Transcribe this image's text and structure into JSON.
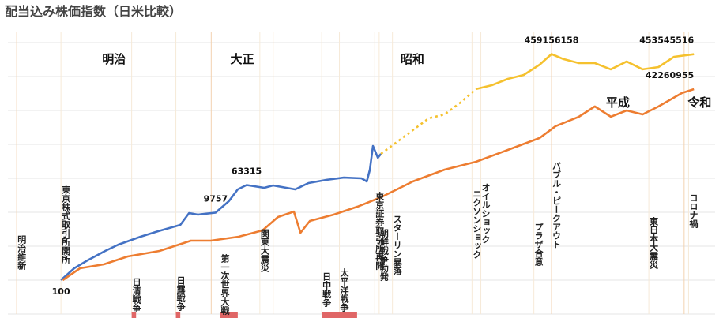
{
  "chart_data": {
    "type": "line",
    "title": "配当込み株価指数（日米比較）",
    "log_scale": true,
    "grid": true,
    "xlim": [
      1866,
      2026
    ],
    "ylim": [
      10,
      2000000000
    ],
    "yticks": [
      10,
      100,
      1000,
      10000,
      100000,
      1000000,
      10000000,
      100000000,
      1000000000
    ],
    "series": [
      {
        "color": "#4472c4",
        "dashed": false,
        "x": [
          1878,
          1881,
          1884,
          1888,
          1891,
          1896,
          1900,
          1905,
          1907,
          1909,
          1913,
          1916,
          1918,
          1920,
          1924,
          1926,
          1929,
          1931,
          1934,
          1938,
          1942,
          1946,
          1947.2,
          1947.9,
          1948.6,
          1949.7,
          1950.4
        ],
        "values": [
          100,
          223,
          381,
          724,
          1110,
          1900,
          2770,
          4250,
          9480,
          8520,
          9757,
          21200,
          47200,
          63315,
          52600,
          61700,
          52600,
          47200,
          72400,
          89800,
          105000,
          100000,
          80700,
          180000,
          898000,
          403000,
          526000
        ],
        "value_labels": [
          "100",
          null,
          null,
          null,
          null,
          null,
          null,
          null,
          null,
          null,
          "9757",
          null,
          null,
          "63315",
          null,
          null,
          null,
          null,
          null,
          null,
          null,
          null,
          null,
          null,
          null,
          null,
          null
        ]
      },
      {
        "color": "#f5c12e",
        "dashed": true,
        "x": [
          1950.4,
          1954,
          1957.6,
          1961.2,
          1964.8,
          1968.4,
          1971.9
        ],
        "values": [
          526000,
          1170000,
          2620000,
          5850000,
          7650000,
          17100000,
          42500000
        ]
      },
      {
        "color": "#f5c12e",
        "dashed": false,
        "x": [
          1971.9,
          1975.5,
          1979.1,
          1982.7,
          1986.3,
          1989,
          1991.7,
          1995.2,
          1998.8,
          2002.4,
          2006,
          2009.6,
          2013.2,
          2016.7,
          2021.2
        ],
        "values": [
          42500000,
          55500000,
          85100000,
          111000000,
          223000000,
          459156158,
          325000000,
          248000000,
          248000000,
          162000000,
          277000000,
          162000000,
          190000000,
          381000000,
          453545516
        ],
        "value_labels": [
          null,
          null,
          null,
          null,
          null,
          "459156158",
          null,
          null,
          null,
          null,
          null,
          null,
          null,
          null,
          "453545516"
        ]
      },
      {
        "color": "#ed7d31",
        "dashed": false,
        "x": [
          1878.4,
          1882.3,
          1887.7,
          1893.1,
          1900.3,
          1907.4,
          1911.9,
          1918.2,
          1923.6,
          1927.1,
          1930.7,
          1932.2,
          1934.3,
          1939.7,
          1945.1,
          1950.4,
          1957.6,
          1964.8,
          1971.9,
          1979.1,
          1986.3,
          1989.9,
          1995.2,
          1998.8,
          2002.4,
          2006,
          2009.6,
          2013.2,
          2018.5,
          2021.2
        ],
        "values": [
          100,
          223,
          292,
          499,
          724,
          1450,
          1450,
          1900,
          2920,
          7240,
          10500,
          2480,
          5540,
          8520,
          14600,
          27700,
          80700,
          180000,
          308000,
          687000,
          1540000,
          3430000,
          6520000,
          13100000,
          6520000,
          10000000,
          7650000,
          13100000,
          32500000,
          42260955
        ],
        "value_labels": [
          null,
          null,
          null,
          null,
          null,
          null,
          null,
          null,
          null,
          null,
          null,
          null,
          null,
          null,
          null,
          null,
          null,
          null,
          null,
          null,
          null,
          null,
          null,
          null,
          null,
          null,
          null,
          null,
          null,
          "42260955"
        ]
      }
    ],
    "eras": [
      {
        "name": "明治",
        "start": 1868
      },
      {
        "name": "大正",
        "start": 1912
      },
      {
        "name": "昭和",
        "start": 1926
      },
      {
        "name": "平成",
        "start": 1989
      },
      {
        "name": "令和",
        "start": 2019
      }
    ],
    "events": [
      {
        "year": 1868,
        "text": "明治維新"
      },
      {
        "year": 1878,
        "text": "東京株式取引所開所"
      },
      {
        "year": 1894,
        "text": "日清戦争"
      },
      {
        "year": 1904,
        "text": "日露戦争"
      },
      {
        "year": 1914,
        "text": "第一次世界大戦"
      },
      {
        "year": 1923,
        "text": "関東大震災"
      },
      {
        "year": 1937,
        "text": "日中戦争"
      },
      {
        "year": 1941,
        "text": "太平洋戦争"
      },
      {
        "year": 1949,
        "text": "東京証券取引所再開"
      },
      {
        "year": 1950,
        "text": "朝鮮戦争勃発"
      },
      {
        "year": 1953,
        "text": "スターリン暴落"
      },
      {
        "year": 1971,
        "text": "ニクソンショック"
      },
      {
        "year": 1973,
        "text": "オイルショック"
      },
      {
        "year": 1985,
        "text": "プラザ合意"
      },
      {
        "year": 1989,
        "text": "バブル・ピークアウト"
      },
      {
        "year": 2011,
        "text": "東日本大震災"
      },
      {
        "year": 2020,
        "text": "コロナ禍"
      }
    ],
    "war_periods": [
      [
        1894,
        1895
      ],
      [
        1904,
        1905
      ],
      [
        1914,
        1918
      ],
      [
        1937,
        1945
      ]
    ],
    "war_color": "#e06666"
  }
}
